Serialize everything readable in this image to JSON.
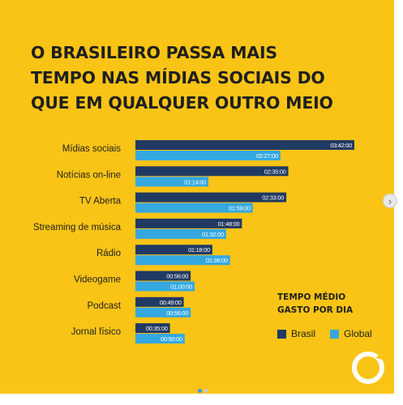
{
  "title_lines": [
    "O BRASILEIRO PASSA MAIS",
    "TEMPO NAS MÍDIAS SOCIAIS DO",
    "QUE EM QUALQUER OUTRO MEIO"
  ],
  "legend": {
    "title_lines": [
      "TEMPO MÉDIO",
      "GASTO POR DIA"
    ],
    "brasil": "Brasil",
    "global": "Global"
  },
  "colors": {
    "background": "#f9c416",
    "brasil": "#213a63",
    "global": "#35a8e0",
    "text": "#1f1f1f"
  },
  "icons": {
    "next": "chevron-right-icon",
    "logo": "brand-circle-logo-icon"
  },
  "chart_data": {
    "type": "bar",
    "orientation": "horizontal",
    "unit": "hours:minutes per day",
    "categories": [
      "Mídias sociais",
      "Notícias on-line",
      "TV Aberta",
      "Streaming de música",
      "Rádio",
      "Videogame",
      "Podcast",
      "Jornal físico"
    ],
    "series": [
      {
        "name": "Brasil",
        "values": [
          222,
          155,
          153,
          108,
          78,
          56,
          49,
          35
        ],
        "labels": [
          "03:42:00",
          "02:35:00",
          "02:33:00",
          "01:48:00",
          "01:18:00",
          "00:56:00",
          "00:49:00",
          "00:35:00"
        ]
      },
      {
        "name": "Global",
        "values": [
          147,
          74,
          119,
          92,
          96,
          60,
          56,
          50
        ],
        "labels": [
          "02:27:00",
          "01:14:00",
          "01:59:00",
          "01:32:00",
          "01:36:00",
          "01:00:00",
          "00:56:00",
          "00:50:00"
        ]
      }
    ]
  }
}
